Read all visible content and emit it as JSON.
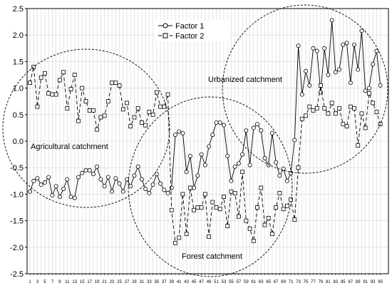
{
  "chart_data": {
    "type": "line",
    "title": "",
    "xlabel": "",
    "ylabel": "",
    "ylim": [
      -2.5,
      2.5
    ],
    "yticks": [
      "-2.5",
      "-2.0",
      "-1.5",
      "-1.0",
      "-0.5",
      "0.0",
      "0.5",
      "1.0",
      "1.5",
      "2.0",
      "2.5"
    ],
    "x_tick_labels": [
      "1",
      "3",
      "5",
      "7",
      "9",
      "11",
      "13",
      "15",
      "17",
      "19",
      "21",
      "23",
      "25",
      "27",
      "29",
      "31",
      "33",
      "35",
      "37",
      "39",
      "41",
      "43",
      "45",
      "47",
      "49",
      "51",
      "53",
      "55",
      "57",
      "59",
      "61",
      "63",
      "65",
      "67",
      "69",
      "71",
      "73",
      "75",
      "77",
      "79",
      "81",
      "83",
      "85",
      "87",
      "89",
      "91",
      "93",
      "95"
    ],
    "grid": true,
    "legend_position": "top-center",
    "series": [
      {
        "name": "Factor 1",
        "marker": "circle",
        "values": [
          -0.95,
          -0.75,
          -0.7,
          -0.82,
          -0.78,
          -0.68,
          -1.02,
          -0.85,
          -1.05,
          -0.9,
          -0.72,
          -1.05,
          -1.07,
          -0.68,
          -0.6,
          -0.55,
          -0.55,
          -0.62,
          -0.48,
          -0.72,
          -0.85,
          -0.68,
          -0.95,
          -0.7,
          -0.8,
          -0.95,
          -0.72,
          -0.85,
          -0.65,
          -0.48,
          -0.72,
          -0.9,
          -0.98,
          -0.82,
          -0.62,
          -0.8,
          -0.92,
          -0.98,
          -0.88,
          0.12,
          0.18,
          0.15,
          -0.58,
          -0.28,
          -0.88,
          -0.65,
          -0.25,
          -0.45,
          -0.1,
          0.12,
          0.35,
          0.35,
          0.3,
          -0.28,
          -0.75,
          -0.48,
          -0.42,
          -0.25,
          0.2,
          -0.45,
          0.25,
          0.32,
          0.2,
          -0.32,
          -0.45,
          0.15,
          -0.4,
          -0.65,
          -0.52,
          -0.75,
          -0.6,
          0.02,
          1.8,
          0.88,
          1.32,
          1.05,
          1.75,
          1.7,
          0.92,
          1.75,
          1.25,
          2.28,
          1.3,
          1.35,
          1.82,
          1.85,
          1.1,
          1.82,
          1.35,
          2.08,
          0.95,
          1.0,
          1.45,
          1.7,
          1.05
        ]
      },
      {
        "name": "Factor 2",
        "marker": "square",
        "values": [
          1.1,
          1.4,
          0.65,
          1.2,
          1.28,
          0.9,
          0.88,
          0.88,
          1.15,
          1.3,
          0.62,
          0.98,
          1.25,
          0.38,
          1.0,
          0.75,
          0.58,
          0.58,
          0.22,
          0.45,
          0.48,
          0.75,
          1.1,
          1.1,
          1.05,
          0.6,
          0.72,
          0.28,
          0.45,
          0.62,
          0.35,
          0.3,
          0.55,
          0.5,
          0.92,
          0.65,
          0.65,
          0.88,
          -1.3,
          -1.92,
          -1.82,
          -1.0,
          -1.75,
          -0.88,
          -1.3,
          -1.25,
          -1.25,
          -1.0,
          -1.8,
          -1.15,
          -1.25,
          -1.28,
          -1.05,
          -1.6,
          -0.95,
          -0.98,
          -1.42,
          -0.58,
          -1.5,
          -1.65,
          -1.88,
          -1.25,
          -0.88,
          -1.58,
          -1.45,
          -1.75,
          -1.25,
          -0.98,
          -1.28,
          -1.22,
          -1.1,
          -1.48,
          -0.5,
          0.42,
          0.48,
          0.65,
          0.58,
          0.62,
          1.05,
          0.62,
          0.52,
          0.72,
          0.52,
          0.62,
          0.32,
          0.28,
          0.65,
          0.62,
          -0.08,
          0.52,
          0.25,
          0.9,
          0.72,
          0.55,
          0.32
        ]
      }
    ],
    "annotations": [
      "Agricultural catchment",
      "Forest catchment",
      "Urbanized catchment"
    ]
  }
}
